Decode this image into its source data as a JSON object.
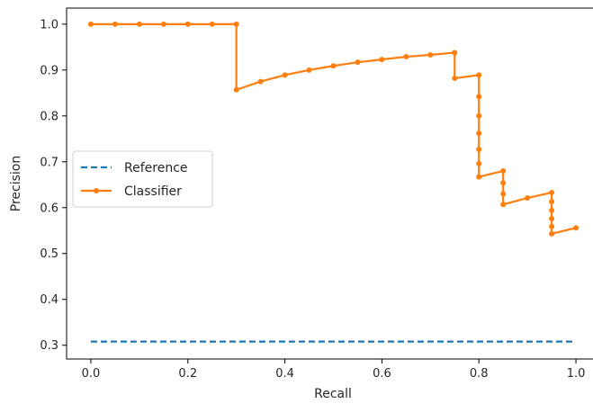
{
  "chart_data": {
    "type": "line",
    "title": "",
    "xlabel": "Recall",
    "ylabel": "Precision",
    "xlim": [
      -0.05,
      1.05
    ],
    "ylim": [
      0.27,
      1.035
    ],
    "xticks": [
      "0.0",
      "0.2",
      "0.4",
      "0.6",
      "0.8",
      "1.0"
    ],
    "yticks": [
      "0.3",
      "0.4",
      "0.5",
      "0.6",
      "0.7",
      "0.8",
      "0.9",
      "1.0"
    ],
    "grid": false,
    "legend_position": "center-left",
    "series": [
      {
        "name": "Reference",
        "style": "dashed",
        "markers": false,
        "color": "#1f77b4",
        "x": [
          0.0,
          1.0
        ],
        "y": [
          0.308,
          0.308
        ]
      },
      {
        "name": "Classifier",
        "style": "solid-step",
        "markers": true,
        "color": "#ff7f0e",
        "x": [
          0.0,
          0.05,
          0.1,
          0.15,
          0.2,
          0.25,
          0.3,
          0.3,
          0.35,
          0.4,
          0.45,
          0.5,
          0.55,
          0.6,
          0.65,
          0.7,
          0.75,
          0.75,
          0.8,
          0.8,
          0.8,
          0.8,
          0.8,
          0.8,
          0.8,
          0.85,
          0.85,
          0.85,
          0.85,
          0.9,
          0.95,
          0.95,
          0.95,
          0.95,
          0.95,
          0.95,
          1.0
        ],
        "y": [
          1.0,
          1.0,
          1.0,
          1.0,
          1.0,
          1.0,
          1.0,
          0.857,
          0.875,
          0.889,
          0.9,
          0.909,
          0.917,
          0.923,
          0.929,
          0.933,
          0.938,
          0.882,
          0.889,
          0.842,
          0.8,
          0.762,
          0.727,
          0.696,
          0.667,
          0.68,
          0.654,
          0.63,
          0.607,
          0.621,
          0.633,
          0.613,
          0.594,
          0.576,
          0.559,
          0.543,
          0.556
        ]
      }
    ]
  }
}
